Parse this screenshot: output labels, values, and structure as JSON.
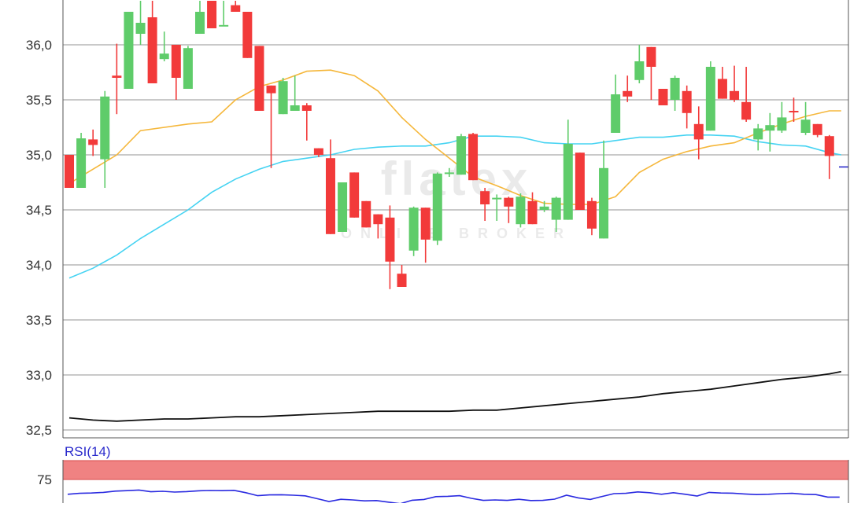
{
  "chart_data": [
    {
      "type": "candlestick",
      "watermark": {
        "brand": "flatex",
        "tagline": "ONLINE BROKER"
      },
      "y_axis": {
        "ylim": [
          32.4,
          36.4
        ],
        "ticks": [
          36.0,
          35.5,
          35.0,
          34.5,
          34.0,
          33.5,
          33.0,
          32.5
        ],
        "tick_labels": [
          "36,0",
          "35,5",
          "35,0",
          "34,5",
          "34,0",
          "33,5",
          "33,0",
          "32,5"
        ]
      },
      "grid": true,
      "colors": {
        "up": "#5fcc6a",
        "down": "#f23a3a",
        "ma_fast": "#f5b73b",
        "ma_mid": "#45d3f2",
        "ma_slow": "#111111",
        "last_price_marker": "#2b2bcc"
      },
      "candles": [
        {
          "o": 35.0,
          "h": 35.0,
          "l": 34.7,
          "c": 34.7
        },
        {
          "o": 34.7,
          "h": 35.2,
          "l": 34.7,
          "c": 35.15
        },
        {
          "o": 35.14,
          "h": 35.23,
          "l": 34.99,
          "c": 35.09
        },
        {
          "o": 34.96,
          "h": 35.58,
          "l": 34.7,
          "c": 35.53
        },
        {
          "o": 35.72,
          "h": 36.01,
          "l": 35.37,
          "c": 35.7
        },
        {
          "o": 35.6,
          "h": 36.3,
          "l": 35.6,
          "c": 36.3
        },
        {
          "o": 36.1,
          "h": 36.4,
          "l": 36.0,
          "c": 36.2
        },
        {
          "o": 36.25,
          "h": 36.4,
          "l": 35.65,
          "c": 35.65
        },
        {
          "o": 35.87,
          "h": 36.12,
          "l": 35.85,
          "c": 35.92
        },
        {
          "o": 36.0,
          "h": 36.0,
          "l": 35.5,
          "c": 35.7
        },
        {
          "o": 35.6,
          "h": 35.99,
          "l": 35.6,
          "c": 35.97
        },
        {
          "o": 36.1,
          "h": 36.4,
          "l": 36.1,
          "c": 36.3
        },
        {
          "o": 36.4,
          "h": 36.4,
          "l": 36.15,
          "c": 36.15
        },
        {
          "o": 36.18,
          "h": 36.4,
          "l": 36.18,
          "c": 36.18
        },
        {
          "o": 36.36,
          "h": 36.4,
          "l": 36.3,
          "c": 36.3
        },
        {
          "o": 36.3,
          "h": 36.3,
          "l": 35.88,
          "c": 35.88
        },
        {
          "o": 35.99,
          "h": 35.99,
          "l": 35.4,
          "c": 35.4
        },
        {
          "o": 35.63,
          "h": 35.63,
          "l": 34.88,
          "c": 35.56
        },
        {
          "o": 35.37,
          "h": 35.7,
          "l": 35.37,
          "c": 35.67
        },
        {
          "o": 35.4,
          "h": 35.72,
          "l": 35.4,
          "c": 35.45
        },
        {
          "o": 35.45,
          "h": 35.47,
          "l": 35.13,
          "c": 35.4
        },
        {
          "o": 35.06,
          "h": 35.06,
          "l": 34.98,
          "c": 35.0
        },
        {
          "o": 34.97,
          "h": 35.14,
          "l": 34.28,
          "c": 34.28
        },
        {
          "o": 34.3,
          "h": 34.75,
          "l": 34.3,
          "c": 34.75
        },
        {
          "o": 34.84,
          "h": 34.84,
          "l": 34.43,
          "c": 34.43
        },
        {
          "o": 34.58,
          "h": 34.58,
          "l": 34.34,
          "c": 34.34
        },
        {
          "o": 34.46,
          "h": 34.46,
          "l": 34.24,
          "c": 34.37
        },
        {
          "o": 34.43,
          "h": 34.54,
          "l": 33.78,
          "c": 34.03
        },
        {
          "o": 33.92,
          "h": 34.0,
          "l": 33.8,
          "c": 33.8
        },
        {
          "o": 34.13,
          "h": 34.53,
          "l": 34.08,
          "c": 34.52
        },
        {
          "o": 34.52,
          "h": 34.52,
          "l": 34.02,
          "c": 34.23
        },
        {
          "o": 34.22,
          "h": 34.84,
          "l": 34.18,
          "c": 34.83
        },
        {
          "o": 34.83,
          "h": 34.88,
          "l": 34.8,
          "c": 34.84
        },
        {
          "o": 34.82,
          "h": 35.19,
          "l": 34.82,
          "c": 35.17
        },
        {
          "o": 35.19,
          "h": 35.2,
          "l": 34.77,
          "c": 34.77
        },
        {
          "o": 34.67,
          "h": 34.7,
          "l": 34.4,
          "c": 34.55
        },
        {
          "o": 34.61,
          "h": 34.64,
          "l": 34.4,
          "c": 34.61
        },
        {
          "o": 34.61,
          "h": 34.62,
          "l": 34.38,
          "c": 34.53
        },
        {
          "o": 34.37,
          "h": 34.65,
          "l": 34.34,
          "c": 34.62
        },
        {
          "o": 34.58,
          "h": 34.66,
          "l": 34.37,
          "c": 34.37
        },
        {
          "o": 34.5,
          "h": 34.58,
          "l": 34.48,
          "c": 34.53
        },
        {
          "o": 34.41,
          "h": 34.62,
          "l": 34.3,
          "c": 34.61
        },
        {
          "o": 34.41,
          "h": 35.32,
          "l": 34.41,
          "c": 35.1
        },
        {
          "o": 35.02,
          "h": 35.02,
          "l": 34.5,
          "c": 34.5
        },
        {
          "o": 34.58,
          "h": 34.61,
          "l": 34.27,
          "c": 34.33
        },
        {
          "o": 34.24,
          "h": 35.13,
          "l": 34.24,
          "c": 34.88
        },
        {
          "o": 35.2,
          "h": 35.73,
          "l": 35.2,
          "c": 35.55
        },
        {
          "o": 35.58,
          "h": 35.72,
          "l": 35.48,
          "c": 35.53
        },
        {
          "o": 35.68,
          "h": 36.0,
          "l": 35.65,
          "c": 35.85
        },
        {
          "o": 35.98,
          "h": 35.98,
          "l": 35.5,
          "c": 35.8
        },
        {
          "o": 35.6,
          "h": 35.6,
          "l": 35.45,
          "c": 35.45
        },
        {
          "o": 35.5,
          "h": 35.72,
          "l": 35.4,
          "c": 35.7
        },
        {
          "o": 35.58,
          "h": 35.63,
          "l": 35.24,
          "c": 35.38
        },
        {
          "o": 35.28,
          "h": 35.44,
          "l": 34.96,
          "c": 35.14
        },
        {
          "o": 35.22,
          "h": 35.85,
          "l": 35.22,
          "c": 35.8
        },
        {
          "o": 35.69,
          "h": 35.8,
          "l": 35.51,
          "c": 35.51
        },
        {
          "o": 35.58,
          "h": 35.81,
          "l": 35.48,
          "c": 35.5
        },
        {
          "o": 35.48,
          "h": 35.8,
          "l": 35.3,
          "c": 35.32
        },
        {
          "o": 35.14,
          "h": 35.28,
          "l": 35.04,
          "c": 35.24
        },
        {
          "o": 35.22,
          "h": 35.38,
          "l": 35.03,
          "c": 35.27
        },
        {
          "o": 35.22,
          "h": 35.48,
          "l": 35.2,
          "c": 35.34
        },
        {
          "o": 35.4,
          "h": 35.52,
          "l": 35.3,
          "c": 35.39
        },
        {
          "o": 35.2,
          "h": 35.48,
          "l": 35.18,
          "c": 35.32
        },
        {
          "o": 35.28,
          "h": 35.28,
          "l": 35.16,
          "c": 35.18
        },
        {
          "o": 35.17,
          "h": 35.18,
          "l": 34.78,
          "c": 34.99
        }
      ],
      "last_price": 34.89,
      "ma_fast": [
        [
          0,
          34.74
        ],
        [
          4,
          35.0
        ],
        [
          6,
          35.22
        ],
        [
          10,
          35.28
        ],
        [
          12,
          35.3
        ],
        [
          14,
          35.5
        ],
        [
          16,
          35.62
        ],
        [
          18,
          35.68
        ],
        [
          20,
          35.76
        ],
        [
          22,
          35.77
        ],
        [
          24,
          35.72
        ],
        [
          26,
          35.58
        ],
        [
          28,
          35.34
        ],
        [
          30,
          35.14
        ],
        [
          32,
          34.97
        ],
        [
          34,
          34.8
        ],
        [
          36,
          34.72
        ],
        [
          38,
          34.63
        ],
        [
          40,
          34.56
        ],
        [
          42,
          34.55
        ],
        [
          44,
          34.55
        ],
        [
          46,
          34.62
        ],
        [
          48,
          34.84
        ],
        [
          50,
          34.96
        ],
        [
          52,
          35.03
        ],
        [
          54,
          35.08
        ],
        [
          56,
          35.11
        ],
        [
          58,
          35.2
        ],
        [
          60,
          35.28
        ],
        [
          62,
          35.35
        ],
        [
          64,
          35.4
        ],
        [
          65,
          35.4
        ]
      ],
      "ma_mid": [
        [
          0,
          33.88
        ],
        [
          2,
          33.97
        ],
        [
          4,
          34.09
        ],
        [
          6,
          34.24
        ],
        [
          8,
          34.37
        ],
        [
          10,
          34.5
        ],
        [
          12,
          34.66
        ],
        [
          14,
          34.78
        ],
        [
          16,
          34.87
        ],
        [
          18,
          34.94
        ],
        [
          20,
          34.97
        ],
        [
          22,
          35.0
        ],
        [
          24,
          35.05
        ],
        [
          26,
          35.07
        ],
        [
          28,
          35.08
        ],
        [
          30,
          35.08
        ],
        [
          32,
          35.11
        ],
        [
          34,
          35.17
        ],
        [
          36,
          35.17
        ],
        [
          38,
          35.16
        ],
        [
          40,
          35.11
        ],
        [
          42,
          35.1
        ],
        [
          44,
          35.1
        ],
        [
          46,
          35.13
        ],
        [
          48,
          35.16
        ],
        [
          50,
          35.16
        ],
        [
          52,
          35.18
        ],
        [
          54,
          35.18
        ],
        [
          56,
          35.17
        ],
        [
          58,
          35.12
        ],
        [
          60,
          35.09
        ],
        [
          62,
          35.08
        ],
        [
          64,
          35.02
        ],
        [
          65,
          35.0
        ]
      ],
      "ma_slow": [
        [
          0,
          32.61
        ],
        [
          2,
          32.59
        ],
        [
          4,
          32.58
        ],
        [
          6,
          32.59
        ],
        [
          8,
          32.6
        ],
        [
          10,
          32.6
        ],
        [
          12,
          32.61
        ],
        [
          14,
          32.62
        ],
        [
          16,
          32.62
        ],
        [
          18,
          32.63
        ],
        [
          20,
          32.64
        ],
        [
          22,
          32.65
        ],
        [
          24,
          32.66
        ],
        [
          26,
          32.67
        ],
        [
          28,
          32.67
        ],
        [
          30,
          32.67
        ],
        [
          32,
          32.67
        ],
        [
          34,
          32.68
        ],
        [
          36,
          32.68
        ],
        [
          38,
          32.7
        ],
        [
          40,
          32.72
        ],
        [
          42,
          32.74
        ],
        [
          44,
          32.76
        ],
        [
          46,
          32.78
        ],
        [
          48,
          32.8
        ],
        [
          50,
          32.83
        ],
        [
          52,
          32.85
        ],
        [
          54,
          32.87
        ],
        [
          56,
          32.9
        ],
        [
          58,
          32.93
        ],
        [
          60,
          32.96
        ],
        [
          62,
          32.98
        ],
        [
          64,
          33.01
        ],
        [
          65,
          33.03
        ]
      ]
    },
    {
      "type": "line",
      "indicator": "RSI(14)",
      "label": "RSI(14)",
      "y_ticks": [
        75
      ],
      "tick_labels": [
        "75"
      ],
      "ylim": [
        45,
        85
      ],
      "overbought_band": [
        75,
        85
      ],
      "colors": {
        "line": "#2a2ae0",
        "band": "#f08282",
        "band_edge": "#d94848",
        "label": "#2a2acc"
      },
      "values": [
        [
          0,
          65.6
        ],
        [
          1,
          66.2
        ],
        [
          2,
          66.4
        ],
        [
          3,
          66.8
        ],
        [
          4,
          67.6
        ],
        [
          5,
          67.9
        ],
        [
          6,
          68.3
        ],
        [
          7,
          67.2
        ],
        [
          8,
          67.5
        ],
        [
          9,
          67.0
        ],
        [
          10,
          67.3
        ],
        [
          11,
          67.8
        ],
        [
          12,
          68.0
        ],
        [
          13,
          67.9
        ],
        [
          14,
          68.1
        ],
        [
          15,
          66.6
        ],
        [
          16,
          64.7
        ],
        [
          17,
          65.2
        ],
        [
          18,
          65.3
        ],
        [
          19,
          65.0
        ],
        [
          20,
          64.6
        ],
        [
          21,
          62.8
        ],
        [
          22,
          61.0
        ],
        [
          23,
          62.4
        ],
        [
          24,
          62.0
        ],
        [
          25,
          61.4
        ],
        [
          26,
          61.6
        ],
        [
          27,
          60.6
        ],
        [
          28,
          59.6
        ],
        [
          29,
          61.8
        ],
        [
          30,
          62.3
        ],
        [
          31,
          64.1
        ],
        [
          32,
          64.3
        ],
        [
          33,
          64.7
        ],
        [
          34,
          63.0
        ],
        [
          35,
          61.7
        ],
        [
          36,
          62.0
        ],
        [
          37,
          61.7
        ],
        [
          38,
          62.4
        ],
        [
          39,
          61.6
        ],
        [
          40,
          61.7
        ],
        [
          41,
          62.5
        ],
        [
          42,
          65.0
        ],
        [
          43,
          63.3
        ],
        [
          44,
          62.3
        ],
        [
          45,
          64.2
        ],
        [
          46,
          66.0
        ],
        [
          47,
          66.2
        ],
        [
          48,
          67.1
        ],
        [
          49,
          66.6
        ],
        [
          50,
          65.6
        ],
        [
          51,
          66.6
        ],
        [
          52,
          65.6
        ],
        [
          53,
          64.5
        ],
        [
          54,
          66.8
        ],
        [
          55,
          66.4
        ],
        [
          56,
          66.3
        ],
        [
          57,
          65.8
        ],
        [
          58,
          65.4
        ],
        [
          59,
          65.6
        ],
        [
          60,
          66.0
        ],
        [
          61,
          66.2
        ],
        [
          62,
          65.6
        ],
        [
          63,
          65.4
        ],
        [
          64,
          63.8
        ],
        [
          65,
          63.8
        ]
      ]
    }
  ]
}
